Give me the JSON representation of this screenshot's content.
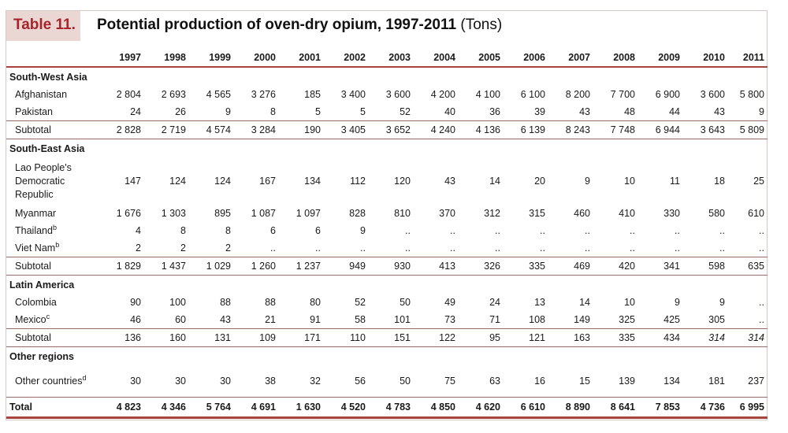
{
  "title": {
    "tag": "Table 11.",
    "text": "Potential production of oven-dry opium, 1997-2011",
    "unit": "(Tons)"
  },
  "years": [
    "1997",
    "1998",
    "1999",
    "2000",
    "2001",
    "2002",
    "2003",
    "2004",
    "2005",
    "2006",
    "2007",
    "2008",
    "2009",
    "2010",
    "2011"
  ],
  "regions": {
    "sw": {
      "name": "South-West Asia",
      "afghanistan": {
        "label": "Afghanistan",
        "values": [
          "2 804",
          "2 693",
          "4 565",
          "3 276",
          "185",
          "3 400",
          "3 600",
          "4 200",
          "4 100",
          "6 100",
          "8 200",
          "7 700",
          "6 900",
          "3 600",
          "5 800"
        ]
      },
      "pakistan": {
        "label": "Pakistan",
        "values": [
          "24",
          "26",
          "9",
          "8",
          "5",
          "5",
          "52",
          "40",
          "36",
          "39",
          "43",
          "48",
          "44",
          "43",
          "9"
        ]
      },
      "subtotal": {
        "label": "Subtotal",
        "values": [
          "2 828",
          "2 719",
          "4 574",
          "3 284",
          "190",
          "3 405",
          "3 652",
          "4 240",
          "4 136",
          "6 139",
          "8 243",
          "7 748",
          "6 944",
          "3 643",
          "5 809"
        ]
      }
    },
    "se": {
      "name": "South-East Asia",
      "lao": {
        "label": "Lao People's Democratic Republic",
        "values": [
          "147",
          "124",
          "124",
          "167",
          "134",
          "112",
          "120",
          "43",
          "14",
          "20",
          "9",
          "10",
          "11",
          "18",
          "25"
        ]
      },
      "myanmar": {
        "label": "Myanmar",
        "values": [
          "1 676",
          "1 303",
          "895",
          "1 087",
          "1 097",
          "828",
          "810",
          "370",
          "312",
          "315",
          "460",
          "410",
          "330",
          "580",
          "610"
        ]
      },
      "thailand": {
        "label": "Thailand",
        "sup": "b",
        "values": [
          "4",
          "8",
          "8",
          "6",
          "6",
          "9",
          "..",
          "..",
          "..",
          "..",
          "..",
          "..",
          "..",
          "..",
          ".."
        ]
      },
      "vietnam": {
        "label": "Viet Nam",
        "sup": "b",
        "values": [
          "2",
          "2",
          "2",
          "..",
          "..",
          "..",
          "..",
          "..",
          "..",
          "..",
          "..",
          "..",
          "..",
          "..",
          ".."
        ]
      },
      "subtotal": {
        "label": "Subtotal",
        "values": [
          "1 829",
          "1 437",
          "1 029",
          "1 260",
          "1 237",
          "949",
          "930",
          "413",
          "326",
          "335",
          "469",
          "420",
          "341",
          "598",
          "635"
        ]
      }
    },
    "la": {
      "name": "Latin America",
      "colombia": {
        "label": "Colombia",
        "values": [
          "90",
          "100",
          "88",
          "88",
          "80",
          "52",
          "50",
          "49",
          "24",
          "13",
          "14",
          "10",
          "9",
          "9",
          ".."
        ]
      },
      "mexico": {
        "label": "Mexico",
        "sup": "c",
        "values": [
          "46",
          "60",
          "43",
          "21",
          "91",
          "58",
          "101",
          "73",
          "71",
          "108",
          "149",
          "325",
          "425",
          "305",
          ".."
        ]
      },
      "subtotal": {
        "label": "Subtotal",
        "values": [
          "136",
          "160",
          "131",
          "109",
          "171",
          "110",
          "151",
          "122",
          "95",
          "121",
          "163",
          "335",
          "434",
          "314",
          "314"
        ],
        "italic_cols": [
          13,
          14
        ]
      }
    },
    "other": {
      "name": "Other regions",
      "countries": {
        "label": "Other countries",
        "sup": "d",
        "values": [
          "30",
          "30",
          "30",
          "38",
          "32",
          "56",
          "50",
          "75",
          "63",
          "16",
          "15",
          "139",
          "134",
          "181",
          "237"
        ]
      }
    }
  },
  "total": {
    "label": "Total",
    "values": [
      "4 823",
      "4 346",
      "5 764",
      "4 691",
      "1 630",
      "4 520",
      "4 783",
      "4 850",
      "4 620",
      "6 610",
      "8 890",
      "8 641",
      "7 853",
      "4 736",
      "6 995"
    ]
  }
}
